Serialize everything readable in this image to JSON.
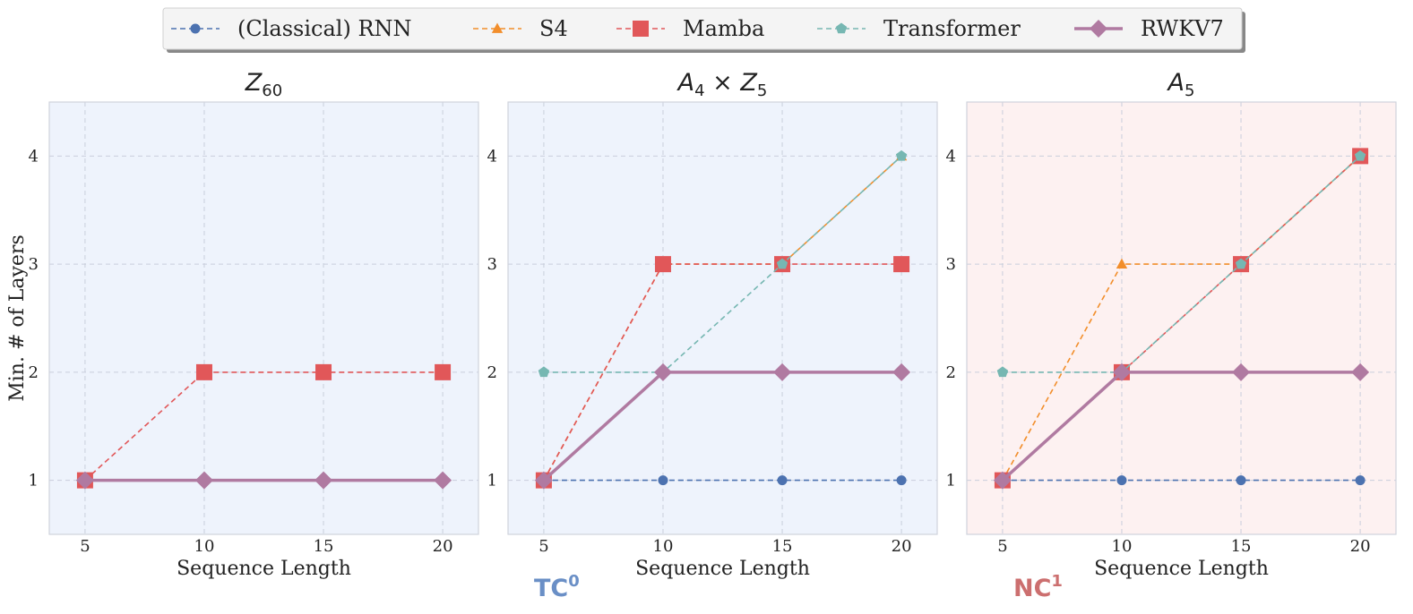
{
  "chart_data": {
    "type": "line",
    "legend": {
      "placement": "top-center",
      "entries": [
        {
          "name": "(Classical) RNN",
          "color": "#4c72b0",
          "marker": "circle",
          "style": "dashed"
        },
        {
          "name": "S4",
          "color": "#f28e2b",
          "marker": "triangle",
          "style": "dashed"
        },
        {
          "name": "Mamba",
          "color": "#e15759",
          "marker": "square",
          "style": "dashed"
        },
        {
          "name": "Transformer",
          "color": "#76b7b2",
          "marker": "pentagon",
          "style": "dashed"
        },
        {
          "name": "RWKV7",
          "color": "#b07aa1",
          "marker": "diamond",
          "style": "solid"
        }
      ]
    },
    "shared": {
      "xlabel": "Sequence Length",
      "ylabel": "Min. # of Layers",
      "x": [
        5,
        10,
        15,
        20
      ],
      "xticks": [
        "5",
        "10",
        "15",
        "20"
      ],
      "yticks": [
        "1",
        "2",
        "3",
        "4"
      ],
      "xlim": [
        3.5,
        21.5
      ],
      "ylim": [
        0.5,
        4.5
      ],
      "grid": true
    },
    "panels": [
      {
        "title_base": "Z",
        "title_sub": "60",
        "title_extra": "",
        "background": "#eef3fc",
        "series": [
          {
            "name": "Mamba",
            "values": [
              1,
              2,
              2,
              2
            ]
          },
          {
            "name": "RWKV7",
            "values": [
              1,
              1,
              1,
              1
            ]
          }
        ]
      },
      {
        "title_base": "A",
        "title_sub": "4",
        "title_extra": "× Z",
        "title_sub2": "5",
        "background": "#eef3fc",
        "series": [
          {
            "name": "(Classical) RNN",
            "values": [
              1,
              1,
              1,
              1
            ]
          },
          {
            "name": "S4",
            "values": [
              1,
              3,
              3,
              4
            ]
          },
          {
            "name": "Mamba",
            "values": [
              1,
              3,
              3,
              3
            ]
          },
          {
            "name": "Transformer",
            "values": [
              2,
              2,
              3,
              4
            ]
          },
          {
            "name": "RWKV7",
            "values": [
              1,
              2,
              2,
              2
            ]
          }
        ]
      },
      {
        "title_base": "A",
        "title_sub": "5",
        "title_extra": "",
        "background": "#fdf1f1",
        "series": [
          {
            "name": "(Classical) RNN",
            "values": [
              1,
              1,
              1,
              1
            ]
          },
          {
            "name": "S4",
            "values": [
              1,
              3,
              3,
              4
            ]
          },
          {
            "name": "Mamba",
            "values": [
              1,
              2,
              3,
              4
            ]
          },
          {
            "name": "Transformer",
            "values": [
              2,
              2,
              3,
              4
            ]
          },
          {
            "name": "RWKV7",
            "values": [
              1,
              2,
              2,
              2
            ]
          }
        ]
      }
    ],
    "annotations": [
      {
        "text": "TC",
        "sup": "0",
        "color": "#6a8fc6"
      },
      {
        "text": "NC",
        "sup": "1",
        "color": "#cc6f6f"
      }
    ]
  }
}
